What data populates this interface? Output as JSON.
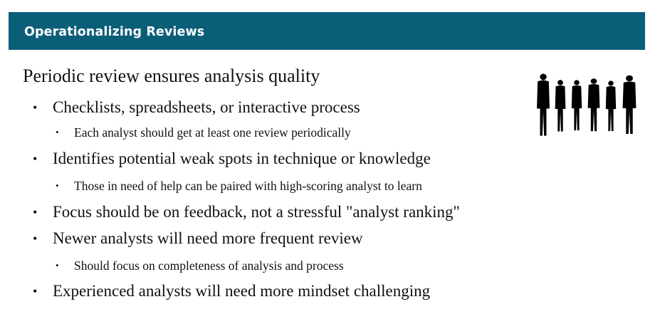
{
  "header": {
    "title": "Operationalizing Reviews"
  },
  "content": {
    "heading": "Periodic review ensures analysis quality",
    "bullets": [
      {
        "text": "Checklists, spreadsheets, or interactive process",
        "level": 1
      },
      {
        "text": "Each analyst should get at least one review periodically",
        "level": 2
      },
      {
        "text": "Identifies potential weak spots in technique or knowledge",
        "level": 1
      },
      {
        "text": "Those in need of help can be paired with high-scoring analyst to learn",
        "level": 2
      },
      {
        "text": "Focus should be on feedback, not a stressful \"analyst ranking\"",
        "level": 1
      },
      {
        "text": "Newer analysts will need more frequent review",
        "level": 1
      },
      {
        "text": "Should focus on completeness of analysis and process",
        "level": 2
      },
      {
        "text": "Experienced analysts will need more mindset challenging",
        "level": 1
      }
    ],
    "bullet_glyph": "•"
  },
  "image": {
    "icon": "people-silhouettes-icon"
  },
  "colors": {
    "title_bar": "#0b5e78",
    "title_text": "#ffffff",
    "body_text": "#111111",
    "silhouette": "#000000"
  }
}
